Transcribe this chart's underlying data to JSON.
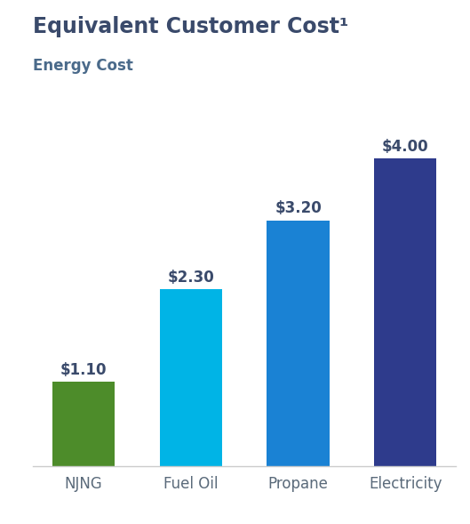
{
  "title": "Equivalent Customer Cost¹",
  "subtitle": "Energy Cost",
  "categories": [
    "NJNG",
    "Fuel Oil",
    "Propane",
    "Electricity"
  ],
  "values": [
    1.1,
    2.3,
    3.2,
    4.0
  ],
  "labels": [
    "$1.10",
    "$2.30",
    "$3.20",
    "$4.00"
  ],
  "bar_colors": [
    "#4d8c2a",
    "#00b4e6",
    "#1a82d4",
    "#2e3b8c"
  ],
  "title_color": "#3a4a6b",
  "subtitle_color": "#4a6a8a",
  "label_color": "#3a4a6b",
  "xlabel_color": "#5a6a7a",
  "background_color": "#ffffff",
  "title_fontsize": 17,
  "subtitle_fontsize": 12,
  "label_fontsize": 12,
  "xlabel_fontsize": 12,
  "ylim": [
    0,
    4.7
  ],
  "bar_width": 0.58
}
